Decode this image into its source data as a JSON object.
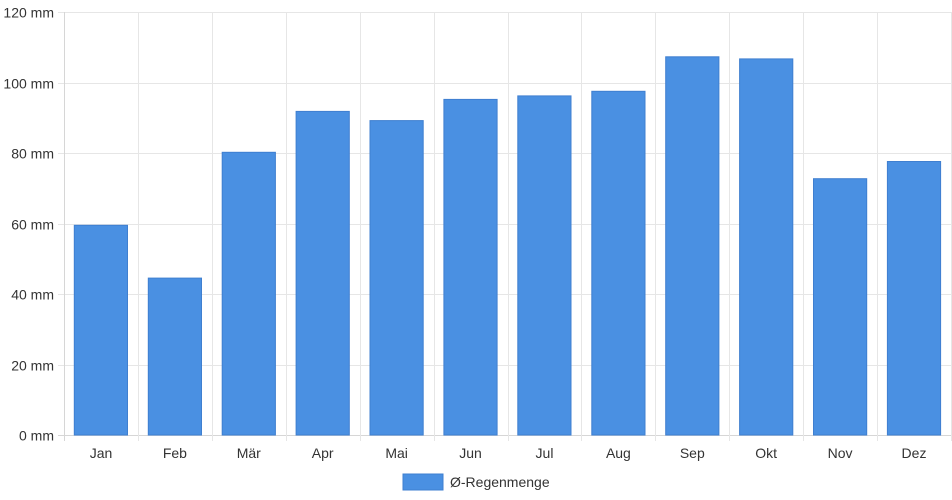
{
  "chart_data": {
    "type": "bar",
    "categories": [
      "Jan",
      "Feb",
      "Mär",
      "Apr",
      "Mai",
      "Jun",
      "Jul",
      "Aug",
      "Sep",
      "Okt",
      "Nov",
      "Dez"
    ],
    "series": [
      {
        "name": "Ø-Regenmenge",
        "values": [
          59.5,
          44.5,
          80.2,
          91.8,
          89.2,
          95.2,
          96.2,
          97.5,
          107.3,
          106.7,
          72.7,
          77.6
        ]
      }
    ],
    "y_ticks": [
      "0 mm",
      "20 mm",
      "40 mm",
      "60 mm",
      "80 mm",
      "100 mm",
      "120 mm"
    ],
    "ylim": [
      0,
      120
    ],
    "y_unit": "mm",
    "grid": true,
    "legend_position": "bottom",
    "colors": {
      "bar": "#4a90e2",
      "bar_border": "#3f7fd0",
      "grid": "#e6e6e6",
      "axis": "#d6d6d6",
      "text": "#333333"
    }
  }
}
